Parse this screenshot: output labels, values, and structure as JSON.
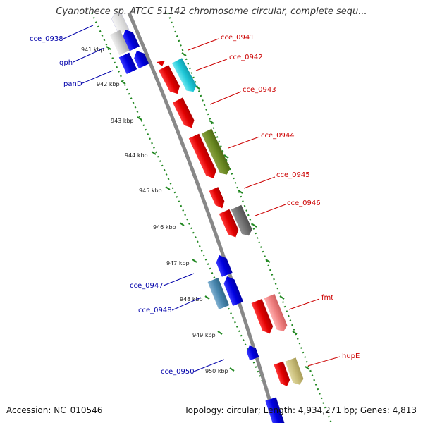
{
  "title": "Cyanothece sp. ATCC 51142 chromosome circular, complete sequ...",
  "footer": {
    "accession": "Accession: NC_010546",
    "topology": "Topology: circular; Length: 4,934,271 bp; Genes: 4,813"
  },
  "colors": {
    "backbone": "#888888",
    "track_dots": "#228822",
    "forward_label": "#cc0000",
    "reverse_label": "#0000aa"
  },
  "ticks": [
    "941 kbp",
    "942 kbp",
    "943 kbp",
    "944 kbp",
    "945 kbp",
    "946 kbp",
    "947 kbp",
    "948 kbp",
    "949 kbp",
    "950 kbp"
  ],
  "forward_labels": [
    "cce_0941",
    "cce_0942",
    "cce_0943",
    "cce_0944",
    "cce_0945",
    "cce_0946",
    "fmt",
    "hupE"
  ],
  "reverse_labels": [
    "cce_0938",
    "gph",
    "panD",
    "cce_0947",
    "cce_0948",
    "cce_0950"
  ],
  "gene_colors": [
    "red",
    "cyan",
    "olive",
    "dark-gray",
    "light-red",
    "khaki",
    "blue",
    "steel-blue",
    "light-gray"
  ]
}
